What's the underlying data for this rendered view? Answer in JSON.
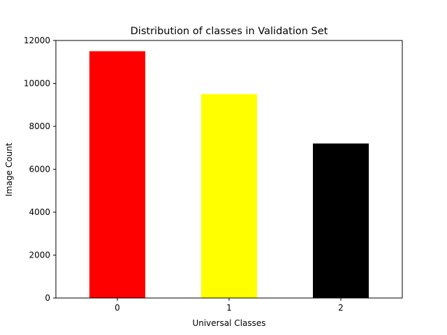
{
  "chart_data": {
    "type": "bar",
    "title": "Distribution of classes in Validation Set",
    "xlabel": "Universal Classes",
    "ylabel": "Image Count",
    "categories": [
      "0",
      "1",
      "2"
    ],
    "values": [
      11500,
      9500,
      7200
    ],
    "colors": [
      "#ff0000",
      "#ffff00",
      "#000000"
    ],
    "ylim": [
      0,
      12000
    ],
    "yticks": [
      0,
      2000,
      4000,
      6000,
      8000,
      10000,
      12000
    ],
    "ytick_labels": [
      "0",
      "2000",
      "4000",
      "6000",
      "8000",
      "10000",
      "12000"
    ],
    "grid": false,
    "legend": "none"
  }
}
